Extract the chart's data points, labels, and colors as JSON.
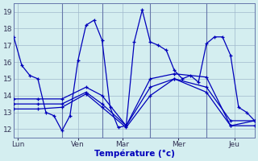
{
  "background_color": "#d4eef0",
  "grid_color": "#a0b8cc",
  "line_color": "#0000bb",
  "xlabel": "Température (°c)",
  "ylim": [
    11.5,
    19.5
  ],
  "xlim": [
    0,
    30
  ],
  "yticks": [
    12,
    13,
    14,
    15,
    16,
    17,
    18,
    19
  ],
  "ytick_labels": [
    "12",
    "13",
    "14",
    "15",
    "16",
    "17",
    "18",
    "19"
  ],
  "day_labels": [
    "Lun",
    "Ven",
    "Mar",
    "Mer",
    "Jeu"
  ],
  "day_positions": [
    0.5,
    8,
    13.5,
    20.5,
    27.5
  ],
  "vline_positions": [
    6,
    11,
    17,
    24
  ],
  "series": [
    {
      "x": [
        0,
        1,
        2,
        3,
        4,
        5,
        6,
        7,
        8,
        9,
        10,
        11,
        12,
        13,
        14,
        15,
        16,
        17,
        18,
        19,
        20,
        21,
        22,
        23,
        24,
        25,
        26,
        27,
        28,
        29,
        30
      ],
      "y": [
        17.5,
        15.8,
        15.2,
        15.0,
        13.0,
        12.8,
        11.9,
        12.8,
        16.1,
        18.2,
        18.5,
        17.3,
        13.3,
        12.1,
        12.2,
        17.2,
        19.1,
        17.2,
        17.0,
        16.7,
        15.5,
        15.0,
        15.2,
        14.8,
        17.1,
        17.5,
        17.5,
        16.4,
        13.3,
        13.0,
        12.5
      ]
    },
    {
      "x": [
        0,
        3,
        6,
        9,
        11,
        14,
        17,
        20,
        24,
        27,
        30
      ],
      "y": [
        13.2,
        13.2,
        13.3,
        14.1,
        13.3,
        12.1,
        14.0,
        15.0,
        14.2,
        12.2,
        12.2
      ]
    },
    {
      "x": [
        0,
        3,
        6,
        9,
        11,
        14,
        17,
        20,
        24,
        27,
        30
      ],
      "y": [
        13.5,
        13.5,
        13.5,
        14.2,
        13.5,
        12.2,
        14.5,
        15.0,
        14.5,
        12.5,
        12.5
      ]
    },
    {
      "x": [
        0,
        3,
        6,
        9,
        11,
        14,
        17,
        20,
        24,
        27,
        30
      ],
      "y": [
        13.8,
        13.8,
        13.8,
        14.5,
        14.0,
        12.2,
        15.0,
        15.3,
        15.1,
        12.2,
        12.5
      ]
    }
  ]
}
